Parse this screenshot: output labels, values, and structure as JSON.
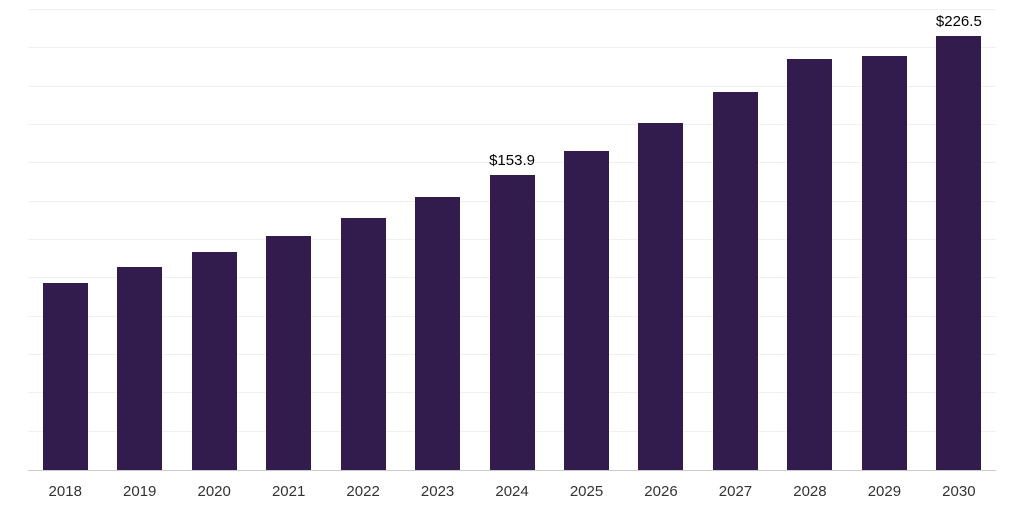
{
  "chart_data": {
    "type": "bar",
    "title": "",
    "xlabel": "",
    "ylabel": "",
    "categories": [
      "2018",
      "2019",
      "2020",
      "2021",
      "2022",
      "2023",
      "2024",
      "2025",
      "2026",
      "2027",
      "2028",
      "2029",
      "2030"
    ],
    "values": [
      97.4,
      106.0,
      113.9,
      121.9,
      131.5,
      142.2,
      153.9,
      166.7,
      181.0,
      197.0,
      214.7,
      215.8,
      226.5
    ],
    "annotations": [
      {
        "category": "2024",
        "text": "$153.9"
      },
      {
        "category": "2030",
        "text": "$226.5"
      }
    ],
    "ylim": [
      0,
      240
    ],
    "grid_step": 20,
    "grid": true,
    "legend": "none",
    "bar_color": "#321b4d",
    "axis_line_color": "#cccccc",
    "gridline_color": "#f0f0f0",
    "tick_label_color": "#333333"
  }
}
